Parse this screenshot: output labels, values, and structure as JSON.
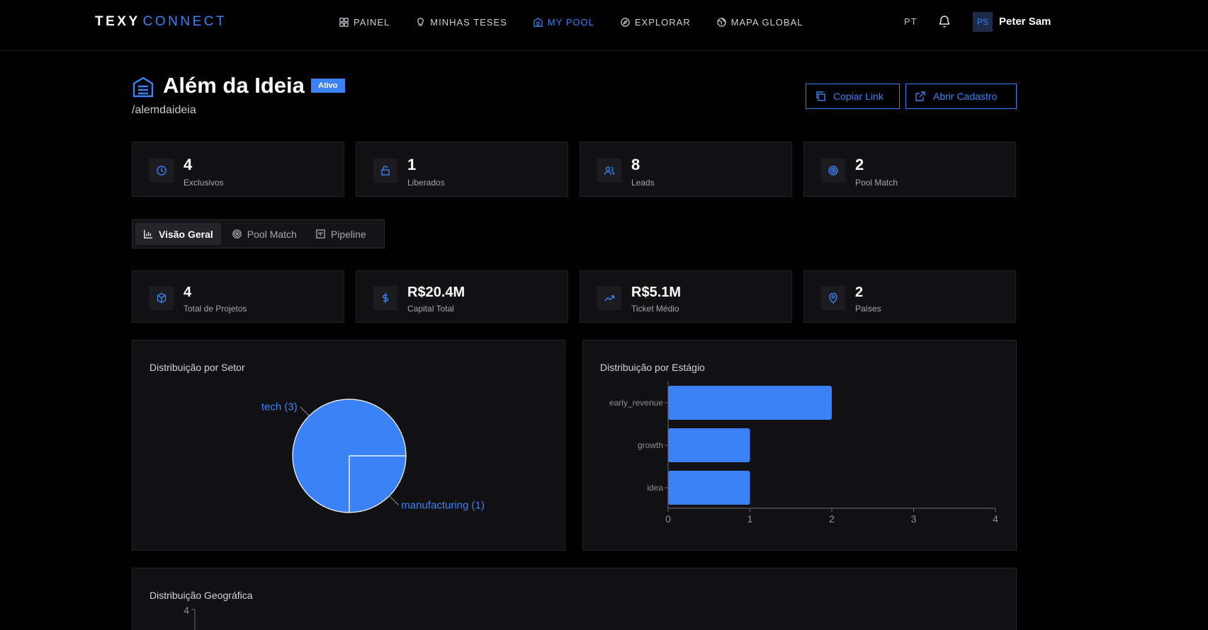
{
  "header": {
    "brand_primary": "TEXY",
    "brand_secondary": "CONNECT",
    "nav": [
      {
        "label": "PAINEL",
        "icon": "grid-icon"
      },
      {
        "label": "MINHAS TESES",
        "icon": "lightbulb-icon"
      },
      {
        "label": "MY POOL",
        "icon": "building-icon",
        "active": true
      },
      {
        "label": "EXPLORAR",
        "icon": "compass-icon"
      },
      {
        "label": "MAPA GLOBAL",
        "icon": "globe-icon"
      }
    ],
    "lang": "PT",
    "user_initials": "PS",
    "user_name": "Peter Sam"
  },
  "pool": {
    "title": "Além da Ideia",
    "status": "Ativo",
    "slug": "/alemdaideia",
    "copy_link_label": "Copiar Link",
    "open_register_label": "Abrir Cadastro"
  },
  "stats": [
    {
      "value": "4",
      "label": "Exclusivos",
      "icon": "clock-icon"
    },
    {
      "value": "1",
      "label": "Liberados",
      "icon": "unlock-icon"
    },
    {
      "value": "8",
      "label": "Leads",
      "icon": "users-icon"
    },
    {
      "value": "2",
      "label": "Pool Match",
      "icon": "target-icon"
    }
  ],
  "tabs": [
    {
      "label": "Visão Geral",
      "icon": "bar-chart-icon",
      "active": true
    },
    {
      "label": "Pool Match",
      "icon": "target-icon"
    },
    {
      "label": "Pipeline",
      "icon": "kanban-icon"
    }
  ],
  "metrics": [
    {
      "value": "4",
      "label": "Total de Projetos",
      "icon": "box-icon"
    },
    {
      "value": "R$20.4M",
      "label": "Capital Total",
      "icon": "dollar-icon"
    },
    {
      "value": "R$5.1M",
      "label": "Ticket Médio",
      "icon": "trending-up-icon"
    },
    {
      "value": "2",
      "label": "Países",
      "icon": "map-pin-icon"
    }
  ],
  "colors": {
    "accent": "#3b82f6",
    "background": "#000000",
    "card": "#111113"
  },
  "chart_data": [
    {
      "type": "pie",
      "title": "Distribuição por Setor",
      "labels": [
        "tech (3)",
        "manufacturing (1)"
      ],
      "categories": [
        "tech",
        "manufacturing"
      ],
      "values": [
        3,
        1
      ],
      "color": "#3b82f6"
    },
    {
      "type": "bar",
      "orientation": "horizontal",
      "title": "Distribuição por Estágio",
      "categories": [
        "early_revenue",
        "growth",
        "idea"
      ],
      "values": [
        2,
        1,
        1
      ],
      "xlim": [
        0,
        4
      ],
      "xticks": [
        "0",
        "1",
        "2",
        "3",
        "4"
      ],
      "color": "#3b82f6"
    },
    {
      "type": "bar",
      "title": "Distribuição Geográfica",
      "yticks": [
        "4"
      ],
      "color": "#3b82f6"
    }
  ]
}
